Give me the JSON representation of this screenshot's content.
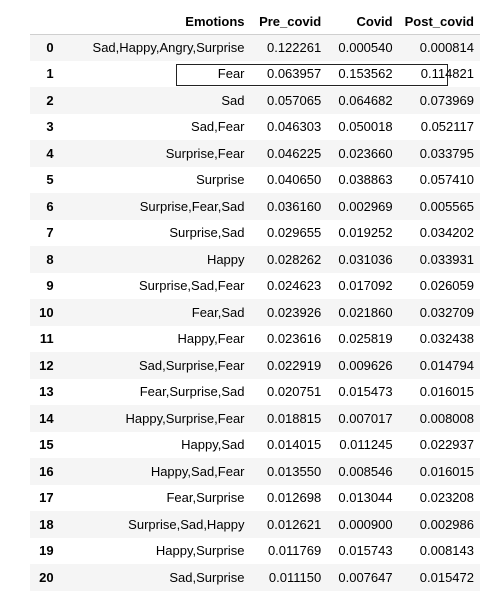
{
  "table": {
    "columns": [
      "",
      "Emotions",
      "Pre_covid",
      "Covid",
      "Post_covid"
    ],
    "rows": [
      {
        "index": "0",
        "emotions": "Sad,Happy,Angry,Surprise",
        "pre_covid": "0.122261",
        "covid": "0.000540",
        "post_covid": "0.000814"
      },
      {
        "index": "1",
        "emotions": "Fear",
        "pre_covid": "0.063957",
        "covid": "0.153562",
        "post_covid": "0.114821"
      },
      {
        "index": "2",
        "emotions": "Sad",
        "pre_covid": "0.057065",
        "covid": "0.064682",
        "post_covid": "0.073969"
      },
      {
        "index": "3",
        "emotions": "Sad,Fear",
        "pre_covid": "0.046303",
        "covid": "0.050018",
        "post_covid": "0.052117"
      },
      {
        "index": "4",
        "emotions": "Surprise,Fear",
        "pre_covid": "0.046225",
        "covid": "0.023660",
        "post_covid": "0.033795"
      },
      {
        "index": "5",
        "emotions": "Surprise",
        "pre_covid": "0.040650",
        "covid": "0.038863",
        "post_covid": "0.057410"
      },
      {
        "index": "6",
        "emotions": "Surprise,Fear,Sad",
        "pre_covid": "0.036160",
        "covid": "0.002969",
        "post_covid": "0.005565"
      },
      {
        "index": "7",
        "emotions": "Surprise,Sad",
        "pre_covid": "0.029655",
        "covid": "0.019252",
        "post_covid": "0.034202"
      },
      {
        "index": "8",
        "emotions": "Happy",
        "pre_covid": "0.028262",
        "covid": "0.031036",
        "post_covid": "0.033931"
      },
      {
        "index": "9",
        "emotions": "Surprise,Sad,Fear",
        "pre_covid": "0.024623",
        "covid": "0.017092",
        "post_covid": "0.026059"
      },
      {
        "index": "10",
        "emotions": "Fear,Sad",
        "pre_covid": "0.023926",
        "covid": "0.021860",
        "post_covid": "0.032709"
      },
      {
        "index": "11",
        "emotions": "Happy,Fear",
        "pre_covid": "0.023616",
        "covid": "0.025819",
        "post_covid": "0.032438"
      },
      {
        "index": "12",
        "emotions": "Sad,Surprise,Fear",
        "pre_covid": "0.022919",
        "covid": "0.009626",
        "post_covid": "0.014794"
      },
      {
        "index": "13",
        "emotions": "Fear,Surprise,Sad",
        "pre_covid": "0.020751",
        "covid": "0.015473",
        "post_covid": "0.016015"
      },
      {
        "index": "14",
        "emotions": "Happy,Surprise,Fear",
        "pre_covid": "0.018815",
        "covid": "0.007017",
        "post_covid": "0.008008"
      },
      {
        "index": "15",
        "emotions": "Happy,Sad",
        "pre_covid": "0.014015",
        "covid": "0.011245",
        "post_covid": "0.022937"
      },
      {
        "index": "16",
        "emotions": "Happy,Sad,Fear",
        "pre_covid": "0.013550",
        "covid": "0.008546",
        "post_covid": "0.016015"
      },
      {
        "index": "17",
        "emotions": "Fear,Surprise",
        "pre_covid": "0.012698",
        "covid": "0.013044",
        "post_covid": "0.023208"
      },
      {
        "index": "18",
        "emotions": "Surprise,Sad,Happy",
        "pre_covid": "0.012621",
        "covid": "0.000900",
        "post_covid": "0.002986"
      },
      {
        "index": "19",
        "emotions": "Happy,Surprise",
        "pre_covid": "0.011769",
        "covid": "0.015743",
        "post_covid": "0.008143"
      },
      {
        "index": "20",
        "emotions": "Sad,Surprise",
        "pre_covid": "0.011150",
        "covid": "0.007647",
        "post_covid": "0.015472"
      }
    ]
  },
  "highlight": {
    "row_index": "1"
  }
}
